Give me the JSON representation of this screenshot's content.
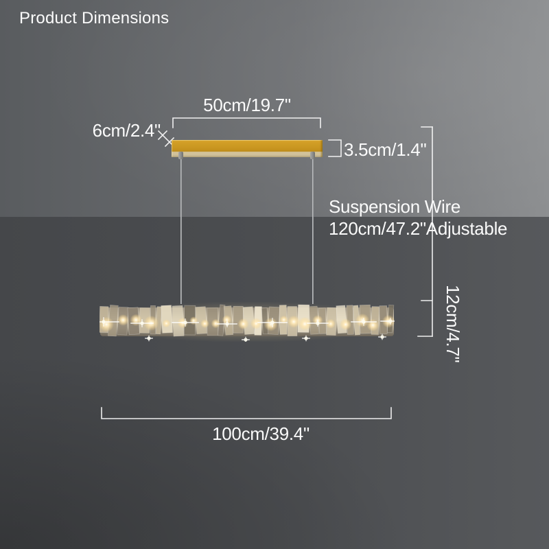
{
  "title": "Product Dimensions",
  "labels": {
    "canopy_width": "50cm/19.7\"",
    "canopy_depth": "6cm/2.4\"",
    "canopy_height": "3.5cm/1.4\"",
    "suspension_line1": "Suspension Wire",
    "suspension_line2": "120cm/47.2\"Adjustable",
    "fixture_height": "12cm/4.7\"",
    "fixture_width": "100cm/39.4\""
  },
  "colors": {
    "wall_dark": "#595c5f",
    "wall_light": "#8c8e90",
    "floor_dark": "#37393c",
    "floor_light": "#57595c",
    "canopy_gold": "#c6931e",
    "canopy_underside": "#cfc099",
    "dimension_line": "#f7f7f7",
    "text": "#fafafa",
    "crystal_warm": "#d9cdb1",
    "light_glow": "#ffe9b8"
  }
}
